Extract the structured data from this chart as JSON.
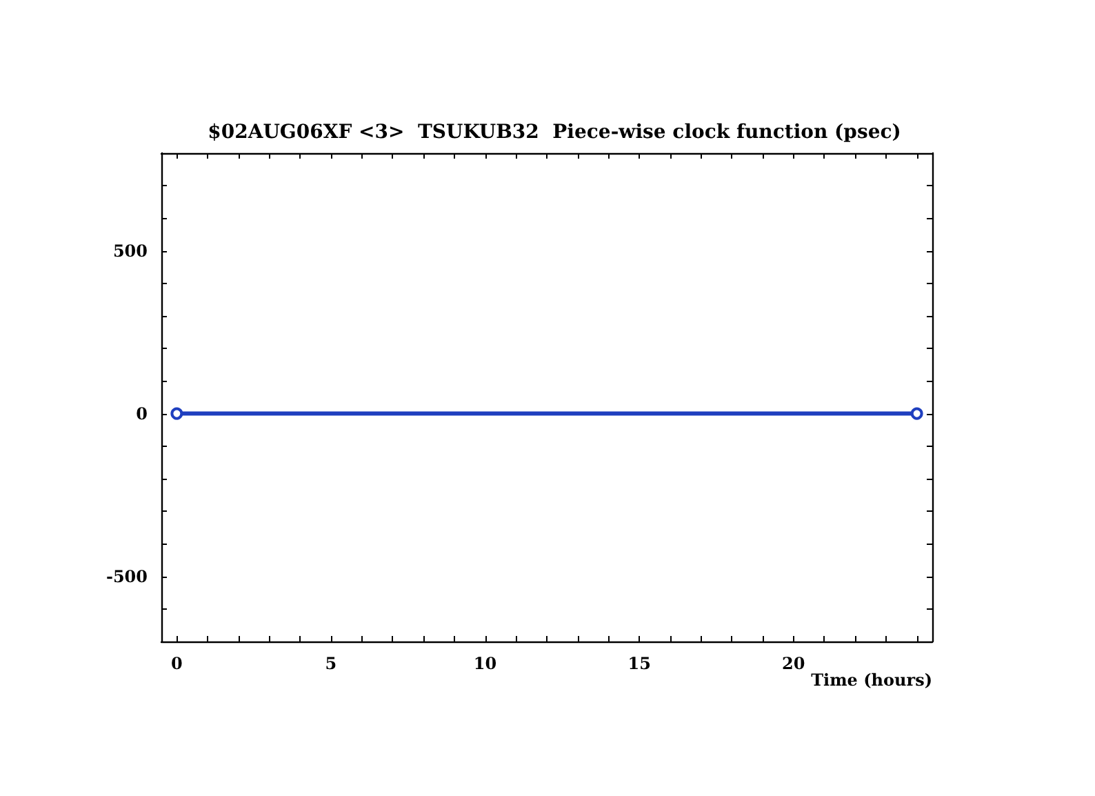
{
  "chart_data": {
    "type": "line",
    "title": "$02AUG06XF <3>  TSUKUB32  Piece-wise clock function (psec)",
    "xlabel": "Time (hours)",
    "x": [
      0,
      24
    ],
    "series": [
      {
        "color": "#1f3fbf",
        "values": [
          0,
          0
        ]
      }
    ],
    "marker": "circle",
    "line_style": "solid",
    "xlim": [
      -0.5,
      24.5
    ],
    "xticks": [
      0,
      {
        "value": 1,
        "label": null
      },
      {
        "value": 2,
        "label": null
      },
      {
        "value": 3,
        "label": null
      },
      {
        "value": 4,
        "label": null
      },
      5,
      {
        "value": 6,
        "label": null
      },
      {
        "value": 7,
        "label": null
      },
      {
        "value": 8,
        "label": null
      },
      {
        "value": 9,
        "label": null
      },
      10,
      {
        "value": 11,
        "label": null
      },
      {
        "value": 12,
        "label": null
      },
      {
        "value": 13,
        "label": null
      },
      {
        "value": 14,
        "label": null
      },
      15,
      {
        "value": 16,
        "label": null
      },
      {
        "value": 17,
        "label": null
      },
      {
        "value": 18,
        "label": null
      },
      {
        "value": 19,
        "label": null
      },
      20,
      {
        "value": 21,
        "label": null
      },
      {
        "value": 22,
        "label": null
      },
      {
        "value": 23,
        "label": null
      },
      {
        "value": 24,
        "label": null
      }
    ],
    "ylim": [
      -700,
      800
    ],
    "yticks": [
      {
        "value": -700,
        "label": null
      },
      {
        "value": -600,
        "label": null
      },
      -500,
      {
        "value": -400,
        "label": null
      },
      {
        "value": -300,
        "label": null
      },
      {
        "value": -200,
        "label": null
      },
      {
        "value": -100,
        "label": null
      },
      0,
      {
        "value": 100,
        "label": null
      },
      {
        "value": 200,
        "label": null
      },
      {
        "value": 300,
        "label": null
      },
      {
        "value": 400,
        "label": null
      },
      500,
      {
        "value": 600,
        "label": null
      },
      {
        "value": 700,
        "label": null
      },
      {
        "value": 800,
        "label": null
      }
    ]
  }
}
